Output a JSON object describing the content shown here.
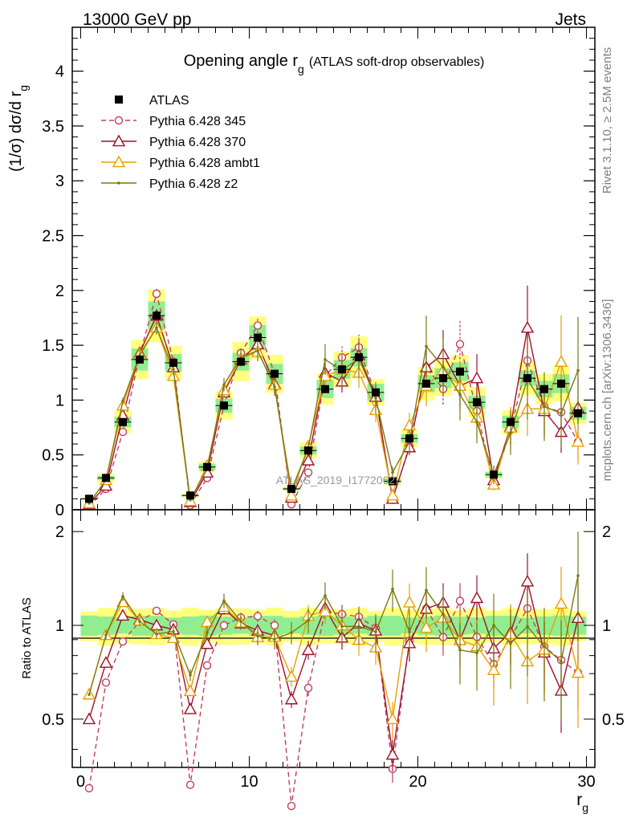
{
  "header": {
    "energy_label": "13000 GeV pp",
    "category_label": "Jets"
  },
  "side_text": {
    "rivet": "Rivet 3.1.10, ≥ 2.5M events",
    "mcplots": "mcplots.cern.ch [arXiv:1306.3436]"
  },
  "chart_data": {
    "type": "line",
    "title_main": "Opening angle r",
    "title_sub": "g",
    "title_rest": "(ATLAS soft-drop observables)",
    "watermark": "ATLAS_2019_I1772062",
    "xlabel": "r",
    "xlabel_sub": "g",
    "ylabel": "(1/σ) dσ/d r",
    "ylabel_sub": "g",
    "ratio_ylabel": "Ratio to ATLAS",
    "xlim": [
      -0.5,
      30.5
    ],
    "ylim": [
      0,
      4.4
    ],
    "ratio_ylim": [
      0.35,
      2.35
    ],
    "x_ticks": [
      "0",
      "10",
      "20",
      "30"
    ],
    "y_ticks": [
      "0",
      "0.5",
      "1",
      "1.5",
      "2",
      "2.5",
      "3",
      "3.5",
      "4"
    ],
    "ratio_y_ticks": [
      "0.5",
      "1",
      "2"
    ],
    "x": [
      0.5,
      1.5,
      2.5,
      3.5,
      4.5,
      5.5,
      6.5,
      7.5,
      8.5,
      9.5,
      10.5,
      11.5,
      12.5,
      13.5,
      14.5,
      15.5,
      16.5,
      17.5,
      18.5,
      19.5,
      20.5,
      21.5,
      22.5,
      23.5,
      24.5,
      25.5,
      26.5,
      27.5,
      28.5,
      29.5
    ],
    "data_series": {
      "name": "ATLAS",
      "values": [
        0.1,
        0.29,
        0.8,
        1.37,
        1.77,
        1.34,
        0.13,
        0.39,
        0.95,
        1.35,
        1.57,
        1.24,
        0.19,
        0.54,
        1.1,
        1.28,
        1.39,
        1.07,
        0.26,
        0.65,
        1.15,
        1.2,
        1.26,
        0.98,
        0.32,
        0.8,
        1.2,
        1.1,
        1.15,
        0.88
      ]
    },
    "series": [
      {
        "name": "Pythia 6.428 345",
        "color": "#c0405a",
        "marker": "circle",
        "dashed": true,
        "values": [
          0.03,
          0.19,
          0.71,
          1.41,
          1.97,
          1.35,
          0.04,
          0.29,
          0.95,
          1.43,
          1.68,
          1.24,
          0.05,
          0.34,
          1.22,
          1.39,
          1.48,
          1.05,
          0.09,
          0.58,
          1.3,
          1.1,
          1.51,
          0.9,
          0.24,
          0.73,
          1.36,
          0.94,
          0.89,
          0.62
        ]
      },
      {
        "name": "Pythia 6.428 370",
        "color": "#a0102a",
        "marker": "triangle",
        "dashed": false,
        "values": [
          0.05,
          0.22,
          0.86,
          1.43,
          1.77,
          1.3,
          0.07,
          0.34,
          1.07,
          1.37,
          1.51,
          1.15,
          0.11,
          0.45,
          1.25,
          1.17,
          1.41,
          1.03,
          0.1,
          0.57,
          1.3,
          1.42,
          1.13,
          1.2,
          0.27,
          0.76,
          1.66,
          0.9,
          0.71,
          0.93
        ]
      },
      {
        "name": "Pythia 6.428 ambt1",
        "color": "#e8a000",
        "marker": "triangle",
        "dashed": false,
        "values": [
          0.06,
          0.27,
          0.95,
          1.42,
          1.66,
          1.22,
          0.08,
          0.4,
          1.09,
          1.38,
          1.44,
          1.14,
          0.13,
          0.58,
          1.22,
          1.28,
          1.25,
          0.91,
          0.13,
          0.77,
          1.13,
          1.27,
          1.13,
          0.84,
          0.23,
          0.75,
          0.92,
          0.92,
          1.35,
          0.62
        ]
      },
      {
        "name": "Pythia 6.428 z2",
        "color": "#7a7a10",
        "marker": "dot",
        "dashed": false,
        "values": [
          0.06,
          0.27,
          0.99,
          1.41,
          1.66,
          1.28,
          0.09,
          0.37,
          1.14,
          1.39,
          1.45,
          1.12,
          0.18,
          0.56,
          1.37,
          1.27,
          1.38,
          1.02,
          0.34,
          0.62,
          1.49,
          1.3,
          1.05,
          0.8,
          0.32,
          0.7,
          1.19,
          0.94,
          0.88,
          1.27
        ]
      }
    ]
  }
}
